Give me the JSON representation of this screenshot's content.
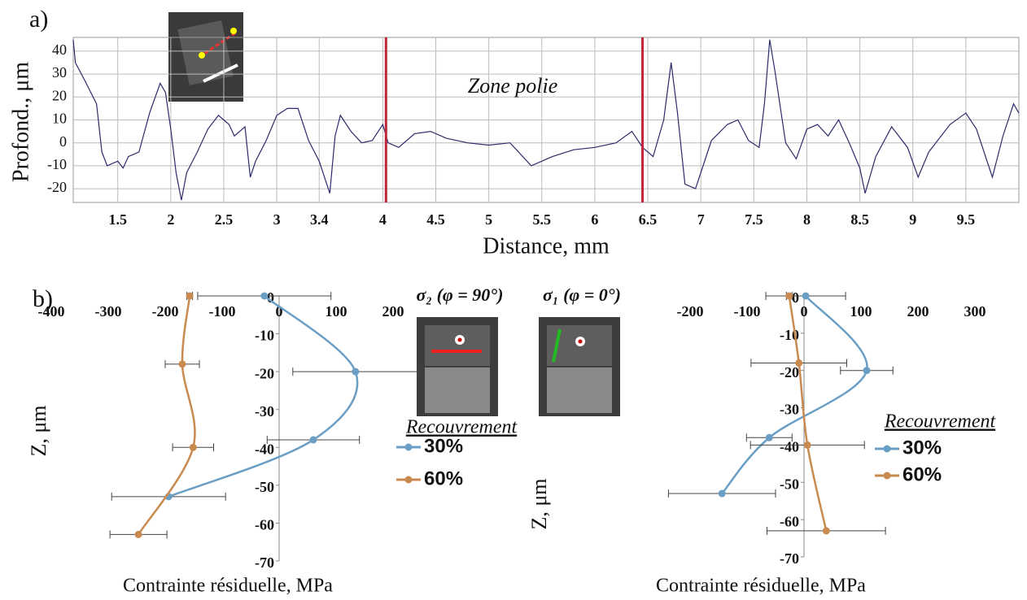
{
  "chart_data": [
    {
      "type": "line",
      "label": "a)",
      "xlabel": "Distance, mm",
      "ylabel": "Profond., μm",
      "annotation": "Zone polie",
      "xlim": [
        1.08,
        10.0
      ],
      "ylim": [
        -26,
        46
      ],
      "xticks": [
        1.5,
        2,
        2.5,
        3,
        3.4,
        4,
        4.5,
        5,
        5.5,
        6,
        6.5,
        7,
        7.5,
        8,
        8.5,
        9,
        9.5
      ],
      "yticks": [
        -20,
        -10,
        0,
        10,
        20,
        30,
        40
      ],
      "grid": true,
      "x": [
        1.08,
        1.1,
        1.18,
        1.3,
        1.35,
        1.4,
        1.5,
        1.55,
        1.6,
        1.7,
        1.8,
        1.9,
        1.95,
        2.0,
        2.05,
        2.1,
        2.15,
        2.25,
        2.35,
        2.45,
        2.55,
        2.6,
        2.7,
        2.75,
        2.8,
        2.9,
        3.0,
        3.1,
        3.2,
        3.3,
        3.4,
        3.5,
        3.55,
        3.6,
        3.7,
        3.8,
        3.9,
        4.0,
        4.05,
        4.15,
        4.3,
        4.45,
        4.6,
        4.8,
        5.0,
        5.2,
        5.4,
        5.6,
        5.8,
        6.0,
        6.2,
        6.35,
        6.45,
        6.55,
        6.65,
        6.72,
        6.78,
        6.85,
        6.95,
        7.1,
        7.25,
        7.35,
        7.45,
        7.55,
        7.6,
        7.65,
        7.7,
        7.8,
        7.9,
        8.0,
        8.1,
        8.2,
        8.3,
        8.4,
        8.5,
        8.55,
        8.65,
        8.8,
        8.95,
        9.05,
        9.15,
        9.35,
        9.5,
        9.6,
        9.75,
        9.85,
        9.95,
        10.0
      ],
      "series": [
        {
          "color": "#2b2b6b",
          "values": [
            45,
            35,
            28,
            17,
            -4,
            -10,
            -8,
            -11,
            -6,
            -4,
            13,
            26,
            22,
            6,
            -13,
            -25,
            -13,
            -4,
            6,
            12,
            8,
            3,
            7,
            -15,
            -8,
            1,
            12,
            15,
            15,
            1,
            -8,
            -22,
            3,
            12,
            5,
            0,
            1,
            8,
            0,
            -2,
            4,
            5,
            2,
            0,
            -1,
            0,
            -10,
            -6,
            -3,
            -2,
            0,
            5,
            -2,
            -6,
            10,
            35,
            13,
            -18,
            -20,
            1,
            8,
            10,
            1,
            -2,
            17,
            45,
            31,
            0,
            -7,
            6,
            8,
            3,
            10,
            0,
            -11,
            -22,
            -6,
            7,
            -2,
            -15,
            -4,
            8,
            13,
            6,
            -15,
            3,
            17,
            13
          ]
        }
      ],
      "markers": {
        "x": [
          4.03,
          6.45
        ],
        "color": "#c0263a"
      }
    },
    {
      "type": "errorbar",
      "label": "b)",
      "xlabel": "Contrainte résiduelle, MPa",
      "ylabel": "Z, μm",
      "annotation": "σ₂ (φ = 90°)",
      "annotation_color": "#e0242c",
      "legend_title": "Recouvrement",
      "xlim": [
        -400,
        200
      ],
      "ylim": [
        -70,
        0
      ],
      "xticks": [
        -400,
        -300,
        -200,
        -100,
        0,
        100,
        200
      ],
      "yticks": [
        0,
        -10,
        -20,
        -30,
        -40,
        -50,
        -60,
        -70
      ],
      "series": [
        {
          "name": "30%",
          "color": "#6b9ec4",
          "x": [
            -26,
            134,
            60,
            -194
          ],
          "y": [
            0,
            -20,
            -38,
            -53
          ],
          "xerr": [
            117,
            110,
            81,
            100
          ]
        },
        {
          "name": "60%",
          "color": "#c98a4f",
          "x": [
            -157,
            -170,
            -151,
            -247
          ],
          "y": [
            0,
            -18,
            -40,
            -63
          ],
          "xerr": [
            5,
            30,
            36,
            50
          ]
        }
      ]
    },
    {
      "type": "errorbar",
      "xlabel": "Contrainte résiduelle, MPa",
      "ylabel": "Z, μm",
      "annotation": "σ₁ (φ = 0°)",
      "annotation_color": "#2ea24a",
      "legend_title": "Recouvrement",
      "xlim": [
        -250,
        300
      ],
      "ylim": [
        -70,
        0
      ],
      "xticks": [
        -200,
        -100,
        0,
        100,
        200,
        300
      ],
      "yticks": [
        0,
        -10,
        -20,
        -30,
        -40,
        -50,
        -60,
        -70
      ],
      "series": [
        {
          "name": "30%",
          "color": "#6b9ec4",
          "x": [
            3,
            110,
            -61,
            -144
          ],
          "y": [
            0,
            -20,
            -38,
            -53
          ],
          "xerr": [
            70,
            46,
            40,
            94
          ]
        },
        {
          "name": "60%",
          "color": "#c98a4f",
          "x": [
            -26,
            -9,
            6,
            39
          ],
          "y": [
            0,
            -18,
            -40,
            -63
          ],
          "xerr": [
            5,
            84,
            100,
            104
          ]
        }
      ]
    }
  ]
}
